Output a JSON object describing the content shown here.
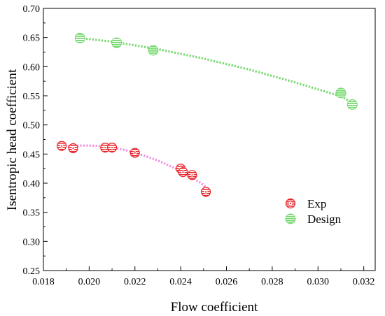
{
  "chart_data": {
    "type": "scatter",
    "title": "",
    "xlabel": "Flow coefficient",
    "ylabel": "Isentropic head coefficient",
    "xlim": [
      0.018,
      0.0325
    ],
    "ylim": [
      0.25,
      0.7
    ],
    "x_ticks": [
      "0.018",
      "0.020",
      "0.022",
      "0.024",
      "0.026",
      "0.028",
      "0.030",
      "0.032"
    ],
    "y_ticks": [
      "0.25",
      "0.30",
      "0.35",
      "0.40",
      "0.45",
      "0.50",
      "0.55",
      "0.60",
      "0.65",
      "0.70"
    ],
    "grid": false,
    "legend": {
      "placement": "bottom-right"
    },
    "series": [
      {
        "name": "Exp",
        "color": "#e8262b",
        "marker": "hatched-circle-with-dot",
        "trend_color": "#f28ee0",
        "x": [
          0.0188,
          0.0193,
          0.0207,
          0.021,
          0.022,
          0.024,
          0.0241,
          0.0245,
          0.0251
        ],
        "y": [
          0.464,
          0.46,
          0.461,
          0.461,
          0.452,
          0.425,
          0.419,
          0.414,
          0.385
        ],
        "trend": {
          "x": [
            0.0188,
            0.0195,
            0.02,
            0.0205,
            0.021,
            0.0215,
            0.022,
            0.0225,
            0.023,
            0.0235,
            0.024,
            0.0245,
            0.025,
            0.0252
          ],
          "y": [
            0.462,
            0.4645,
            0.4645,
            0.4635,
            0.461,
            0.4575,
            0.452,
            0.446,
            0.439,
            0.43,
            0.421,
            0.41,
            0.397,
            0.386
          ]
        }
      },
      {
        "name": "Design",
        "color": "#76d96e",
        "marker": "hatched-circle",
        "trend_color": "#76d96e",
        "x": [
          0.0196,
          0.0212,
          0.0228,
          0.031,
          0.0315
        ],
        "y": [
          0.649,
          0.641,
          0.628,
          0.555,
          0.535
        ],
        "trend": {
          "x": [
            0.0196,
            0.021,
            0.023,
            0.025,
            0.027,
            0.029,
            0.031,
            0.0315
          ],
          "y": [
            0.649,
            0.643,
            0.63,
            0.614,
            0.595,
            0.573,
            0.549,
            0.538
          ]
        }
      }
    ]
  }
}
